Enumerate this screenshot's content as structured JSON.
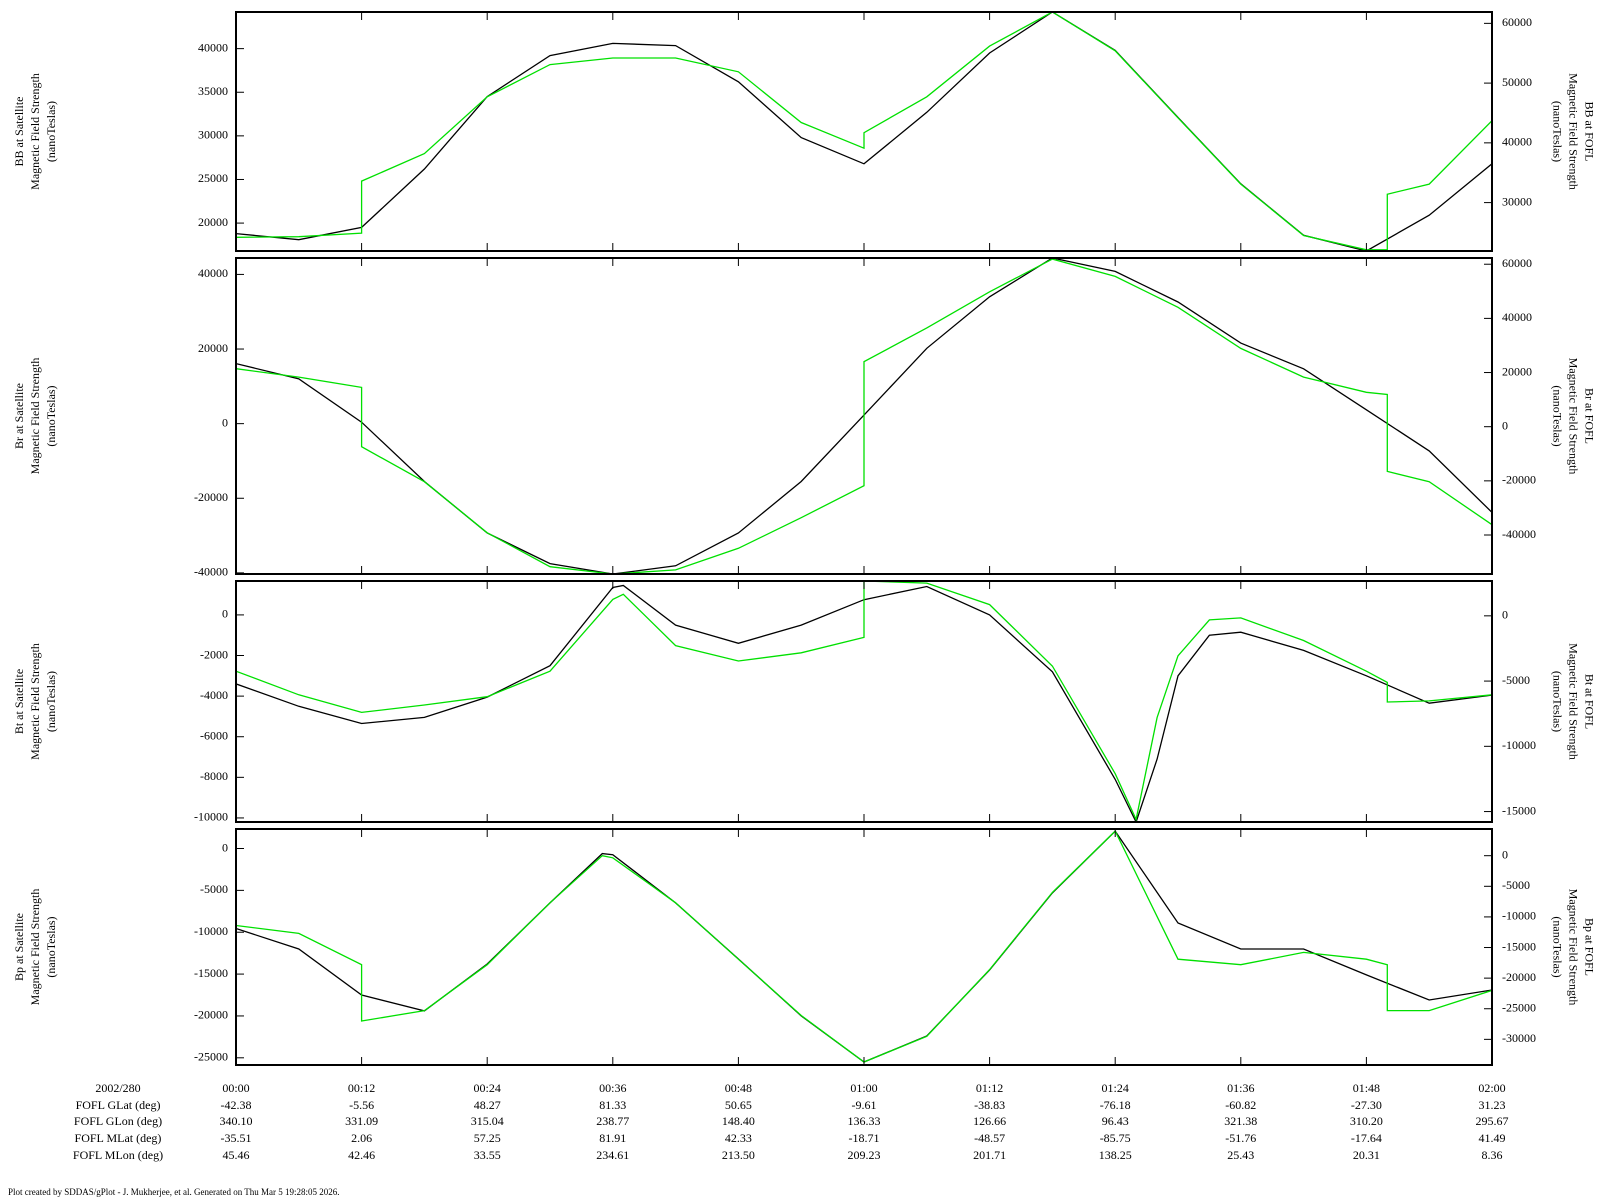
{
  "chart_data": [
    {
      "type": "line",
      "y_label": [
        "BB at Satellite",
        "Magnetic Field Strength",
        "(nanoTeslas)"
      ],
      "y2_label": [
        "BB at FOFL",
        "Magnetic Field Strength",
        "(nanoTeslas)"
      ],
      "ylim": [
        16800,
        44200
      ],
      "yticks": [
        20000,
        25000,
        30000,
        35000,
        40000
      ],
      "y2lim": [
        21900,
        61900
      ],
      "y2ticks": [
        30000,
        40000,
        50000,
        60000
      ],
      "series": [
        {
          "color": "#000000",
          "x": [
            0,
            6,
            12,
            18,
            24,
            30,
            36,
            42,
            48,
            54,
            60,
            66,
            72,
            78,
            84,
            90,
            96,
            102,
            108,
            114,
            120
          ],
          "values": [
            18800,
            18100,
            19500,
            26200,
            34500,
            39200,
            40600,
            40350,
            36200,
            29800,
            26800,
            32700,
            39500,
            44200,
            39800,
            32100,
            24500,
            18600,
            16800,
            20900,
            26800
          ]
        },
        {
          "color": "#00e000",
          "axis": "y2",
          "x": [
            0,
            6,
            12,
            12,
            18,
            24,
            30,
            36,
            42,
            48,
            54,
            60,
            60,
            66,
            72,
            78,
            84,
            90,
            96,
            102,
            108,
            110,
            110,
            114,
            120
          ],
          "values": [
            24200,
            24300,
            24900,
            33600,
            38200,
            47700,
            53100,
            54200,
            54200,
            51900,
            43400,
            39100,
            41700,
            47700,
            56200,
            61900,
            55400,
            44200,
            33100,
            24500,
            22100,
            22100,
            31400,
            33100,
            43700
          ]
        }
      ]
    },
    {
      "type": "line",
      "y_label": [
        "Br at Satellite",
        "Magnetic Field Strength",
        "(nanoTeslas)"
      ],
      "y2_label": [
        "Br at FOFL",
        "Magnetic Field Strength",
        "(nanoTeslas)"
      ],
      "ylim": [
        -40300,
        44400
      ],
      "yticks": [
        -40000,
        -20000,
        0,
        20000,
        40000
      ],
      "y2lim": [
        -54400,
        62300
      ],
      "y2ticks": [
        -40000,
        -20000,
        0,
        20000,
        40000,
        60000
      ],
      "series": [
        {
          "color": "#000000",
          "x": [
            0,
            6,
            12,
            18,
            24,
            30,
            36,
            42,
            48,
            54,
            60,
            66,
            72,
            78,
            84,
            90,
            96,
            102,
            108,
            114,
            120
          ],
          "values": [
            16100,
            12000,
            400,
            -15500,
            -29300,
            -37500,
            -40300,
            -38100,
            -29300,
            -15500,
            2300,
            20200,
            34000,
            44400,
            40800,
            32600,
            21600,
            14700,
            3700,
            -7300,
            -23800
          ]
        },
        {
          "color": "#00e000",
          "axis": "y2",
          "x": [
            0,
            6,
            12,
            12,
            18,
            24,
            30,
            36,
            42,
            48,
            54,
            60,
            60,
            66,
            72,
            78,
            84,
            90,
            96,
            102,
            108,
            110,
            110,
            114,
            120
          ],
          "values": [
            21400,
            18300,
            14500,
            -7400,
            -20300,
            -39200,
            -51700,
            -54400,
            -52900,
            -44900,
            -33600,
            -21800,
            24000,
            36500,
            49800,
            61900,
            55500,
            44100,
            28900,
            18300,
            12700,
            11900,
            -16500,
            -20300,
            -36200
          ]
        }
      ]
    },
    {
      "type": "line",
      "y_label": [
        "Bt at Satellite",
        "Magnetic Field Strength",
        "(nanoTeslas)"
      ],
      "y2_label": [
        "Bt at FOFL",
        "Magnetic Field Strength",
        "(nanoTeslas)"
      ],
      "ylim": [
        -10200,
        1670
      ],
      "yticks": [
        -10000,
        -8000,
        -6000,
        -4000,
        -2000,
        0
      ],
      "y2lim": [
        -15800,
        2670
      ],
      "y2ticks": [
        -15000,
        -10000,
        -5000,
        0
      ],
      "series": [
        {
          "color": "#000000",
          "x": [
            0,
            6,
            12,
            18,
            24,
            30,
            36,
            37,
            42,
            48,
            54,
            60,
            66,
            72,
            78,
            84,
            86,
            88,
            90,
            93,
            96,
            102,
            108,
            114,
            120
          ],
          "values": [
            -3400,
            -4500,
            -5350,
            -5050,
            -4050,
            -2500,
            1350,
            1450,
            -500,
            -1400,
            -500,
            750,
            1400,
            0,
            -2800,
            -8100,
            -10200,
            -7100,
            -3000,
            -1000,
            -850,
            -1750,
            -3000,
            -4350,
            -3950
          ]
        },
        {
          "color": "#00e000",
          "axis": "y2",
          "x": [
            0,
            6,
            12,
            18,
            24,
            30,
            36,
            37,
            42,
            48,
            54,
            60,
            60,
            66,
            72,
            78,
            84,
            86,
            88,
            90,
            93,
            96,
            102,
            108,
            110,
            110,
            114,
            120
          ],
          "values": [
            -4240,
            -6050,
            -7400,
            -6830,
            -6200,
            -4240,
            1260,
            1650,
            -2280,
            -3460,
            -2830,
            -1650,
            2670,
            2510,
            860,
            -3850,
            -12100,
            -15600,
            -7800,
            -3060,
            -310,
            -160,
            -1890,
            -4240,
            -5100,
            -6600,
            -6520,
            -6050
          ]
        }
      ]
    },
    {
      "type": "line",
      "y_label": [
        "Bp at Satellite",
        "Magnetic Field Strength",
        "(nanoTeslas)"
      ],
      "y2_label": [
        "Bp at FOFL",
        "Magnetic Field Strength",
        "(nanoTeslas)"
      ],
      "ylim": [
        -25860,
        2330
      ],
      "yticks": [
        -25000,
        -20000,
        -15000,
        -10000,
        -5000,
        0
      ],
      "y2lim": [
        -34190,
        4360
      ],
      "y2ticks": [
        -30000,
        -25000,
        -20000,
        -15000,
        -10000,
        -5000,
        0
      ],
      "series": [
        {
          "color": "#000000",
          "x": [
            0,
            6,
            12,
            18,
            24,
            30,
            35,
            36,
            42,
            48,
            54,
            60,
            66,
            72,
            78,
            84,
            90,
            96,
            102,
            108,
            114,
            120
          ],
          "values": [
            -9560,
            -12000,
            -17500,
            -19400,
            -13800,
            -6500,
            -610,
            -740,
            -6500,
            -13200,
            -20000,
            -25500,
            -22400,
            -14500,
            -5300,
            2080,
            -8900,
            -12000,
            -12000,
            -15100,
            -18100,
            -16900
          ]
        },
        {
          "color": "#00e000",
          "axis": "y2",
          "x": [
            0,
            6,
            12,
            12,
            18,
            24,
            30,
            35,
            36,
            42,
            48,
            54,
            60,
            66,
            72,
            78,
            84,
            90,
            96,
            102,
            108,
            110,
            110,
            114,
            120
          ],
          "values": [
            -11400,
            -12700,
            -17800,
            -27000,
            -25300,
            -17800,
            -7700,
            0,
            -340,
            -7700,
            -16900,
            -26100,
            -33700,
            -29500,
            -18600,
            -6000,
            4020,
            -16900,
            -17800,
            -15800,
            -16900,
            -17800,
            -25300,
            -25300,
            -22000
          ]
        }
      ]
    }
  ],
  "time_axis": {
    "xlim": [
      0,
      120
    ],
    "xticks": [
      {
        "value": 0,
        "label": "00:00"
      },
      {
        "value": 12,
        "label": "00:12"
      },
      {
        "value": 24,
        "label": "00:24"
      },
      {
        "value": 36,
        "label": "00:36"
      },
      {
        "value": 48,
        "label": "00:48"
      },
      {
        "value": 60,
        "label": "01:00"
      },
      {
        "value": 72,
        "label": "01:12"
      },
      {
        "value": 84,
        "label": "01:24"
      },
      {
        "value": 96,
        "label": "01:36"
      },
      {
        "value": 108,
        "label": "01:48"
      },
      {
        "value": 120,
        "label": "02:00"
      }
    ],
    "date": "2002/280",
    "rows": [
      {
        "label": "FOFL GLat (deg)",
        "values": [
          "-42.38",
          "-5.56",
          "48.27",
          "81.33",
          "50.65",
          "-9.61",
          "-38.83",
          "-76.18",
          "-60.82",
          "-27.30",
          "31.23"
        ]
      },
      {
        "label": "FOFL GLon (deg)",
        "values": [
          "340.10",
          "331.09",
          "315.04",
          "238.77",
          "148.40",
          "136.33",
          "126.66",
          "96.43",
          "321.38",
          "310.20",
          "295.67"
        ]
      },
      {
        "label": "FOFL MLat (deg)",
        "values": [
          "-35.51",
          "2.06",
          "57.25",
          "81.91",
          "42.33",
          "-18.71",
          "-48.57",
          "-85.75",
          "-51.76",
          "-17.64",
          "41.49"
        ]
      },
      {
        "label": "FOFL MLon (deg)",
        "values": [
          "45.46",
          "42.46",
          "33.55",
          "234.61",
          "213.50",
          "209.23",
          "201.71",
          "138.25",
          "25.43",
          "20.31",
          "8.36"
        ]
      }
    ]
  },
  "footer": "Plot created by SDDAS/gPlot - J. Mukherjee, et al.  Generated on Thu Mar 5 19:28:05 2026."
}
